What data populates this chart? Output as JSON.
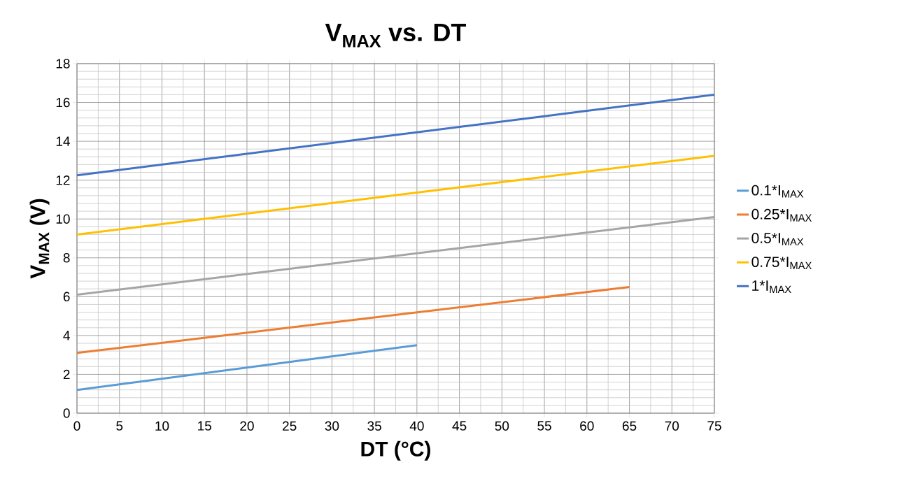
{
  "chart_data": {
    "type": "line",
    "title": "V$_{MAX}$ vs. DT",
    "xlabel": "DT (°C)",
    "ylabel": "V$_{MAX}$ (V)",
    "xlim": [
      0,
      75
    ],
    "xticks": [
      0,
      5,
      10,
      15,
      20,
      25,
      30,
      35,
      40,
      45,
      50,
      55,
      60,
      65,
      70,
      75
    ],
    "ylim": [
      0,
      18
    ],
    "yticks": [
      0,
      2,
      4,
      6,
      8,
      10,
      12,
      14,
      16,
      18
    ],
    "grid": true,
    "legend": "right",
    "marker": "none",
    "line_style": "solid",
    "series": [
      {
        "name": "0.1*I$_{MAX}$",
        "color": "#5b9bd5",
        "x": [
          0,
          40
        ],
        "values": [
          1.2,
          3.5
        ]
      },
      {
        "name": "0.25*I$_{MAX}$",
        "color": "#ed7d31",
        "x": [
          0,
          65
        ],
        "values": [
          3.1,
          6.5
        ]
      },
      {
        "name": "0.5*I$_{MAX}$",
        "color": "#a5a5a5",
        "x": [
          0,
          75
        ],
        "values": [
          6.1,
          10.1
        ]
      },
      {
        "name": "0.75*I$_{MAX}$",
        "color": "#ffc000",
        "x": [
          0,
          75
        ],
        "values": [
          9.2,
          13.25
        ]
      },
      {
        "name": "1*I$_{MAX}$",
        "color": "#4472c4",
        "x": [
          0,
          75
        ],
        "values": [
          12.25,
          16.4
        ]
      }
    ]
  }
}
